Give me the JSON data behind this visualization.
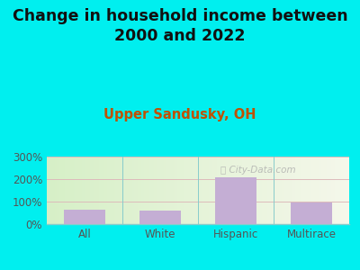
{
  "title": "Change in household income between\n2000 and 2022",
  "subtitle": "Upper Sandusky, OH",
  "categories": [
    "All",
    "White",
    "Hispanic",
    "Multirace"
  ],
  "values": [
    65,
    60,
    207,
    97
  ],
  "bar_color": "#c4aed4",
  "title_fontsize": 12.5,
  "subtitle_fontsize": 10.5,
  "subtitle_color": "#c05000",
  "background_outer": "#00efef",
  "ylim": [
    0,
    300
  ],
  "yticks": [
    0,
    100,
    200,
    300
  ],
  "ytick_labels": [
    "0%",
    "100%",
    "200%",
    "300%"
  ],
  "grid_color": "#ddbbbb",
  "watermark": "City-Data.com",
  "tick_label_color": "#555555",
  "bottom_line_color": "#88cccc"
}
